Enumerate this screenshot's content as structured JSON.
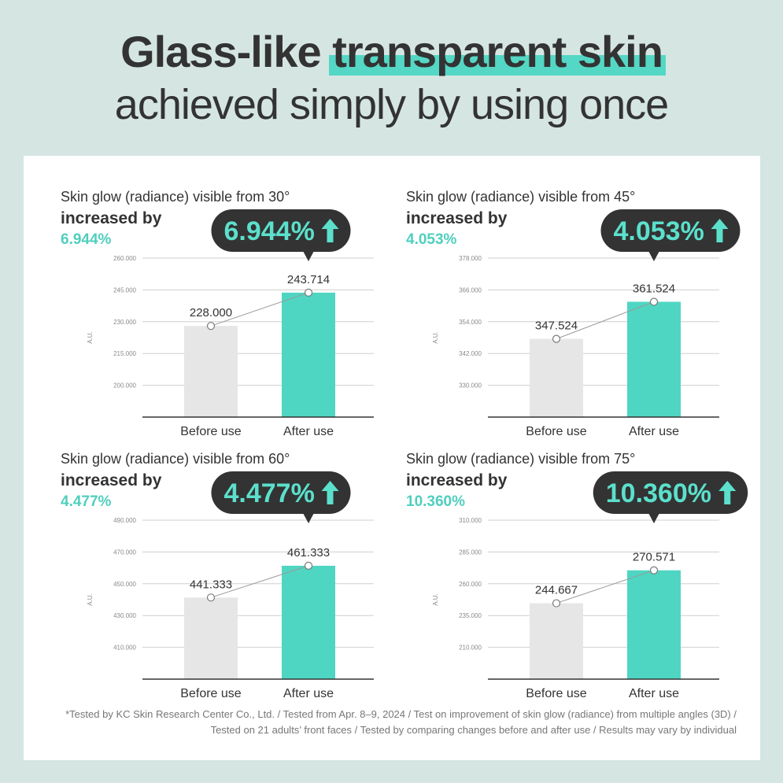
{
  "headline": {
    "line1_pre": "Glass-like ",
    "line1_highlight": "transparent skin",
    "line2": "achieved simply by using once"
  },
  "colors": {
    "background": "#d5e6e2",
    "accent": "#4fd6c2",
    "before_bar": "#e6e6e6",
    "callout": "#333333",
    "callout_text": "#5be0cc",
    "percent_text": "#4fcfbd"
  },
  "icons": {
    "callout_arrow": "arrow-up-icon"
  },
  "chart_data": [
    {
      "type": "bar",
      "title": "Skin glow (radiance) visible from 30°",
      "subtitle": "increased by",
      "percent_label": "6.944%",
      "callout": "6.944%",
      "ylabel": "A.U.",
      "categories": [
        "Before use",
        "After use"
      ],
      "values": [
        228.0,
        243.714
      ],
      "value_labels": [
        "228.000",
        "243.714"
      ],
      "yticks": [
        200.0,
        215.0,
        230.0,
        245.0,
        260.0
      ],
      "ytick_labels": [
        "200.000",
        "215.000",
        "230.000",
        "245.000",
        "260.000"
      ],
      "ylim": [
        185.0,
        260.0
      ],
      "grid": true
    },
    {
      "type": "bar",
      "title": "Skin glow (radiance) visible from 45°",
      "subtitle": "increased by",
      "percent_label": "4.053%",
      "callout": "4.053%",
      "ylabel": "A.U.",
      "categories": [
        "Before use",
        "After use"
      ],
      "values": [
        347.524,
        361.524
      ],
      "value_labels": [
        "347.524",
        "361.524"
      ],
      "yticks": [
        330.0,
        342.0,
        354.0,
        366.0,
        378.0
      ],
      "ytick_labels": [
        "330.000",
        "342.000",
        "354.000",
        "366.000",
        "378.000"
      ],
      "ylim": [
        318.0,
        378.0
      ],
      "grid": true
    },
    {
      "type": "bar",
      "title": "Skin glow (radiance) visible from 60°",
      "subtitle": "increased by",
      "percent_label": "4.477%",
      "callout": "4.477%",
      "ylabel": "A.U.",
      "categories": [
        "Before use",
        "After use"
      ],
      "values": [
        441.333,
        461.333
      ],
      "value_labels": [
        "441.333",
        "461.333"
      ],
      "yticks": [
        410.0,
        430.0,
        450.0,
        470.0,
        490.0
      ],
      "ytick_labels": [
        "410.000",
        "430.000",
        "450.000",
        "470.000",
        "490.000"
      ],
      "ylim": [
        390.0,
        490.0
      ],
      "grid": true
    },
    {
      "type": "bar",
      "title": "Skin glow (radiance) visible from 75°",
      "subtitle": "increased by",
      "percent_label": "10.360%",
      "callout": "10.360%",
      "ylabel": "A.U.",
      "categories": [
        "Before use",
        "After use"
      ],
      "values": [
        244.667,
        270.571
      ],
      "value_labels": [
        "244.667",
        "270.571"
      ],
      "yticks": [
        210.0,
        235.0,
        260.0,
        285.0,
        310.0
      ],
      "ytick_labels": [
        "210.000",
        "235.000",
        "260.000",
        "285.000",
        "310.000"
      ],
      "ylim": [
        185.0,
        310.0
      ],
      "grid": true
    }
  ],
  "footnote": {
    "line1": "*Tested by KC Skin Research Center Co., Ltd. / Tested from Apr. 8–9, 2024 / Test on improvement of skin glow (radiance) from multiple angles (3D) /",
    "line2": "Tested on 21 adults’ front faces / Tested by comparing changes before and after use / Results may vary by individual"
  }
}
